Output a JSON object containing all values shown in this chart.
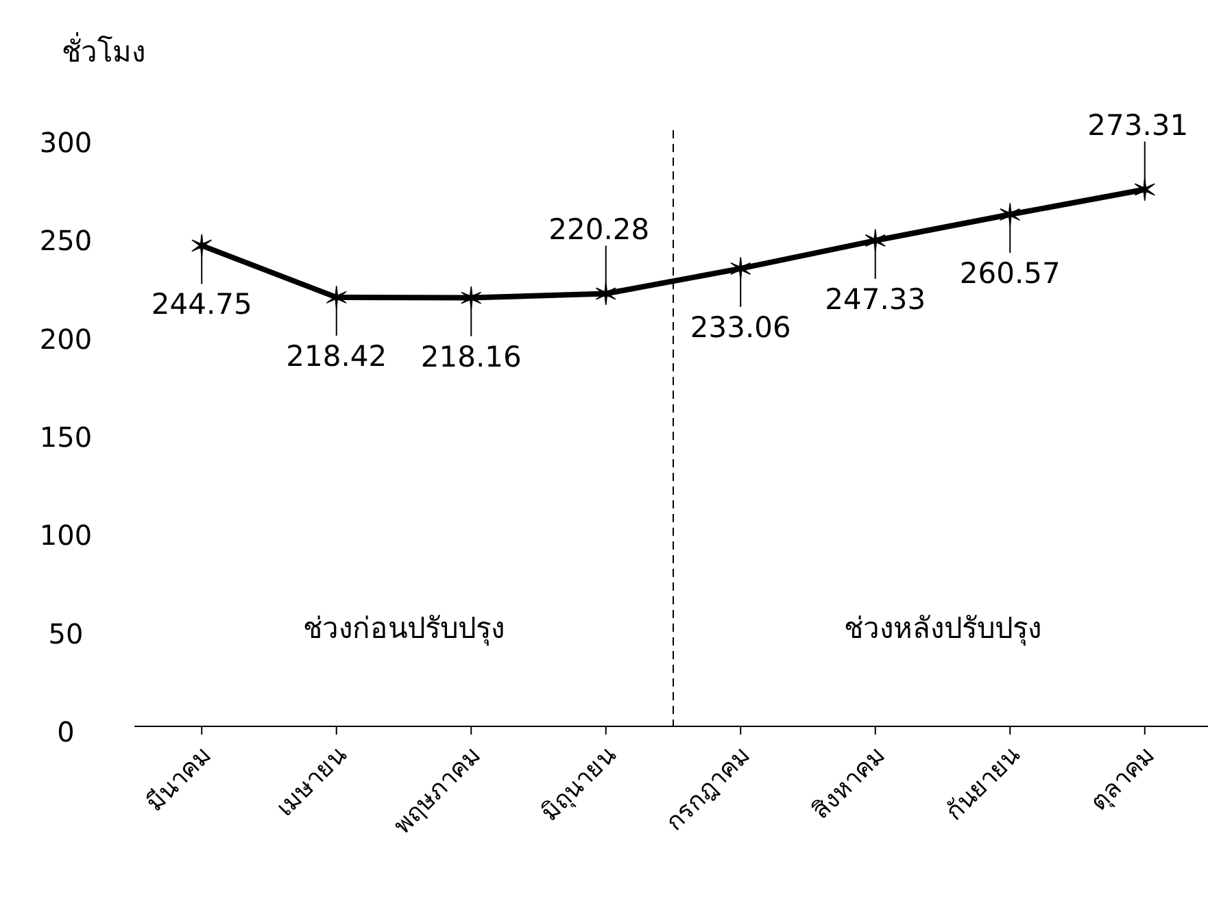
{
  "chart_data": {
    "type": "line",
    "ylabel": "ชั่วโมง",
    "categories": [
      "มีนาคม",
      "เมษายน",
      "พฤษภาคม",
      "มิถุนายน",
      "กรกฎาคม",
      "สิงหาคม",
      "กันยายน",
      "ตุลาคม"
    ],
    "series": [
      {
        "color": "#000000",
        "values": [
          244.75,
          218.42,
          218.16,
          220.28,
          233.06,
          247.33,
          260.57,
          273.31
        ]
      }
    ],
    "ylim": [
      0,
      300
    ],
    "yticks": [
      0,
      50,
      100,
      150,
      200,
      250,
      300
    ],
    "grid": false,
    "marker": "cross",
    "line_style": "solid",
    "data_labels": true,
    "annotations": [
      "ช่วงก่อนปรับปรุง",
      "ช่วงหลังปรับปรุง"
    ]
  }
}
